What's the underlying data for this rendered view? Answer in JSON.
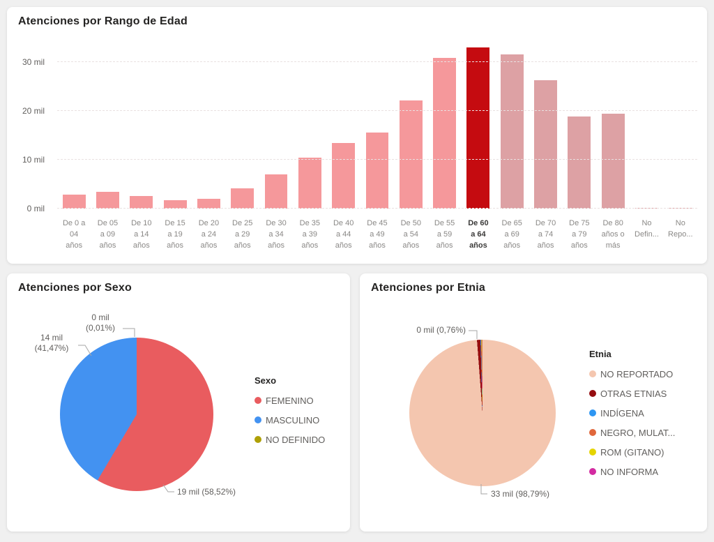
{
  "colors": {
    "page_background": "#F0F0F0",
    "card_background": "#FFFFFF",
    "title_text": "#252423",
    "axis_text": "#605E5C",
    "x_axis_text": "#8A8886",
    "gridline": "#E9E1E1",
    "connector": "#A6A6A6"
  },
  "chart_data": [
    {
      "id": "age",
      "type": "bar",
      "title": "Atenciones por Rango de Edad",
      "unit": "mil",
      "categories": [
        [
          "De 0 a",
          "04",
          "años"
        ],
        [
          "De 05",
          "a 09",
          "años"
        ],
        [
          "De 10",
          "a 14",
          "años"
        ],
        [
          "De 15",
          "a 19",
          "años"
        ],
        [
          "De 20",
          "a 24",
          "años"
        ],
        [
          "De 25",
          "a 29",
          "años"
        ],
        [
          "De 30",
          "a 34",
          "años"
        ],
        [
          "De 35",
          "a 39",
          "años"
        ],
        [
          "De 40",
          "a 44",
          "años"
        ],
        [
          "De 45",
          "a 49",
          "años"
        ],
        [
          "De 50",
          "a 54",
          "años"
        ],
        [
          "De 55",
          "a 59",
          "años"
        ],
        [
          "De 60",
          "a 64",
          "años"
        ],
        [
          "De 65",
          "a 69",
          "años"
        ],
        [
          "De 70",
          "a 74",
          "años"
        ],
        [
          "De 75",
          "a 79",
          "años"
        ],
        [
          "De 80",
          "años o",
          "más"
        ],
        [
          "No",
          "Defin..."
        ],
        [
          "No",
          "Repo..."
        ]
      ],
      "values": [
        2.9,
        3.4,
        2.6,
        1.7,
        2.0,
        4.1,
        7.0,
        10.5,
        13.4,
        15.6,
        22.1,
        30.9,
        33.0,
        31.6,
        26.3,
        18.9,
        19.4,
        0.2,
        0.2
      ],
      "ylim": [
        0,
        35
      ],
      "yticks": [
        0,
        10,
        20,
        30
      ],
      "ytick_labels": [
        "0 mil",
        "10 mil",
        "20 mil",
        "30 mil"
      ],
      "grid": "horizontal-dashed",
      "highlighted_index": 12,
      "muted_from_index": 13,
      "bar_color": "#F5989B",
      "highlight_color": "#C50B10",
      "muted_color": "#DDA1A4"
    },
    {
      "id": "sexo",
      "type": "pie",
      "title": "Atenciones por Sexo",
      "legend_title": "Sexo",
      "legend_position": "right",
      "slices": [
        {
          "label": "FEMENINO",
          "value_mil": 19,
          "pct": 58.52,
          "color": "#E95C5F",
          "callout_lines": [
            "19 mil (58,52%)"
          ]
        },
        {
          "label": "MASCULINO",
          "value_mil": 14,
          "pct": 41.47,
          "color": "#4392F1",
          "callout_lines": [
            "14 mil",
            "(41,47%)"
          ]
        },
        {
          "label": "NO DEFINIDO",
          "value_mil": 0,
          "pct": 0.01,
          "color": "#AEA006",
          "callout_lines": [
            "0 mil",
            "(0,01%)"
          ]
        }
      ]
    },
    {
      "id": "etnia",
      "type": "pie",
      "title": "Atenciones por Etnia",
      "legend_title": "Etnia",
      "legend_position": "right",
      "slices": [
        {
          "label": "NO REPORTADO",
          "value_mil": 33,
          "pct": 98.79,
          "color": "#F4C6AF",
          "callout_lines": [
            "33 mil (98,79%)"
          ]
        },
        {
          "label": "OTRAS ETNIAS",
          "value_mil": 0,
          "pct": 0.76,
          "color": "#950D10",
          "callout_lines": [
            "0 mil (0,76%)"
          ]
        },
        {
          "label": "INDÍGENA",
          "value_mil": null,
          "pct": null,
          "color": "#2D96F2",
          "callout_lines": []
        },
        {
          "label": "NEGRO, MULAT...",
          "value_mil": null,
          "pct": null,
          "color": "#E0673C",
          "callout_lines": []
        },
        {
          "label": "ROM (GITANO)",
          "value_mil": null,
          "pct": null,
          "color": "#E5D400",
          "callout_lines": []
        },
        {
          "label": "NO INFORMA",
          "value_mil": null,
          "pct": null,
          "color": "#D32BA1",
          "callout_lines": []
        }
      ]
    }
  ]
}
